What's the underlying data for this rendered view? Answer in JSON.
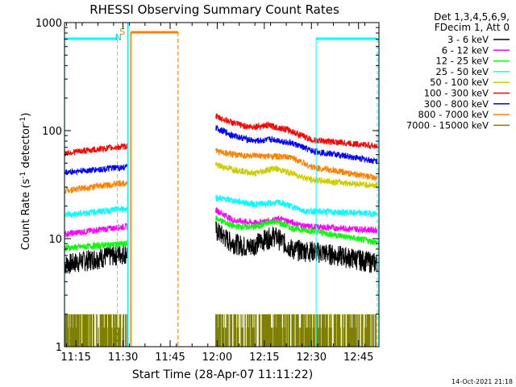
{
  "chart_data": {
    "type": "line",
    "title": "RHESSI Observing Summary Count Rates",
    "xlabel": "Start Time (28-Apr-07 11:11:22)",
    "ylabel_main": "Count Rate (s",
    "ylabel_sup1": "-1",
    "ylabel_mid": " detector",
    "ylabel_sup2": "-1",
    "ylabel_end": ")",
    "yscale": "log",
    "ylim": [
      1,
      1000
    ],
    "xlim_minutes": [
      11.37,
      111.5
    ],
    "x_ticks": [
      {
        "label": "11:15",
        "minute": 15
      },
      {
        "label": "11:30",
        "minute": 30
      },
      {
        "label": "11:45",
        "minute": 45
      },
      {
        "label": "12:00",
        "minute": 60
      },
      {
        "label": "12:15",
        "minute": 75
      },
      {
        "label": "12:30",
        "minute": 90
      },
      {
        "label": "12:45",
        "minute": 105
      }
    ],
    "y_ticks": [
      {
        "label": "1",
        "value": 1
      },
      {
        "label": "10",
        "value": 10
      },
      {
        "label": "100",
        "value": 100
      },
      {
        "label": "1000",
        "value": 1000
      }
    ],
    "legend_header": [
      "Det 1,3,4,5,6,9,",
      "FDecim 1, Att 0"
    ],
    "series": [
      {
        "name": "3 - 6 keV",
        "color": "#000000",
        "pre": [
          [
            11.4,
            5.8
          ],
          [
            31.5,
            7.5
          ]
        ],
        "post": [
          [
            59.5,
            12.0
          ],
          [
            64,
            9.5
          ],
          [
            70,
            8.4
          ],
          [
            78,
            10.8
          ],
          [
            84,
            8.0
          ],
          [
            90,
            7.8
          ],
          [
            111,
            6.0
          ]
        ]
      },
      {
        "name": "6 - 12 keV",
        "color": "#ff00ff",
        "pre": [
          [
            11.4,
            11.0
          ],
          [
            31.5,
            13.0
          ]
        ],
        "post": [
          [
            59.5,
            18.5
          ],
          [
            65,
            14.8
          ],
          [
            72,
            14.0
          ],
          [
            80,
            15.2
          ],
          [
            88,
            13.0
          ],
          [
            111,
            12.0
          ]
        ]
      },
      {
        "name": "12 - 25 keV",
        "color": "#00ff00",
        "pre": [
          [
            11.4,
            8.2
          ],
          [
            31.5,
            9.0
          ]
        ],
        "post": [
          [
            59.5,
            15.5
          ],
          [
            65,
            13.0
          ],
          [
            72,
            12.8
          ],
          [
            78,
            14.5
          ],
          [
            84,
            12.5
          ],
          [
            111,
            9.2
          ]
        ]
      },
      {
        "name": "25 - 50 keV",
        "color": "#00ffff",
        "pre": [
          [
            11.4,
            16.5
          ],
          [
            31.5,
            19.0
          ]
        ],
        "post": [
          [
            59.5,
            24.0
          ],
          [
            65,
            22.5
          ],
          [
            72,
            20.8
          ],
          [
            80,
            21.5
          ],
          [
            88,
            18.0
          ],
          [
            111,
            17.0
          ]
        ]
      },
      {
        "name": "50 - 100 keV",
        "color": "#cccc00",
        "pre": [],
        "post": [
          [
            59.5,
            48.0
          ],
          [
            65,
            44.0
          ],
          [
            72,
            40.0
          ],
          [
            78,
            45.0
          ],
          [
            84,
            40.0
          ],
          [
            90,
            35.0
          ],
          [
            111,
            31.0
          ]
        ]
      },
      {
        "name": "100 - 300 keV",
        "color": "#ff0000",
        "pre": [
          [
            11.4,
            62.0
          ],
          [
            31.5,
            72.0
          ]
        ],
        "post": [
          [
            59.5,
            135.0
          ],
          [
            65,
            118.0
          ],
          [
            70,
            108.0
          ],
          [
            76,
            112.0
          ],
          [
            82,
            103.0
          ],
          [
            90,
            82.0
          ],
          [
            111,
            72.0
          ]
        ]
      },
      {
        "name": "300 - 800 keV",
        "color": "#0000ff",
        "pre": [
          [
            11.4,
            41.0
          ],
          [
            31.5,
            46.0
          ]
        ],
        "post": [
          [
            59.5,
            106.0
          ],
          [
            65,
            90.0
          ],
          [
            72,
            80.0
          ],
          [
            78,
            83.0
          ],
          [
            84,
            76.0
          ],
          [
            90,
            65.0
          ],
          [
            111,
            52.0
          ]
        ]
      },
      {
        "name": "800 - 7000 keV",
        "color": "#ff8000",
        "pre": [
          [
            11.4,
            28.0
          ],
          [
            31.5,
            33.0
          ]
        ],
        "post": [
          [
            59.5,
            65.0
          ],
          [
            65,
            60.0
          ],
          [
            72,
            58.0
          ],
          [
            78,
            58.0
          ],
          [
            84,
            56.0
          ],
          [
            90,
            46.0
          ],
          [
            111,
            36.0
          ]
        ]
      },
      {
        "name": "7000 - 15000 keV",
        "color": "#808000",
        "pre": [
          [
            11.4,
            1.5
          ],
          [
            31.5,
            1.5
          ]
        ],
        "post": [
          [
            59.5,
            1.5
          ],
          [
            111,
            1.5
          ]
        ]
      }
    ],
    "intervals": {
      "night": [
        [
          11.4,
          28.2
        ],
        [
          91.5,
          111.0
        ]
      ],
      "saa": [
        [
          32.5,
          47.5
        ]
      ],
      "N_label": "N",
      "S_label": "S",
      "data_gap_end_minute": 59.0
    }
  },
  "footer": {
    "timestamp": "14-Oct-2021 21:18"
  }
}
